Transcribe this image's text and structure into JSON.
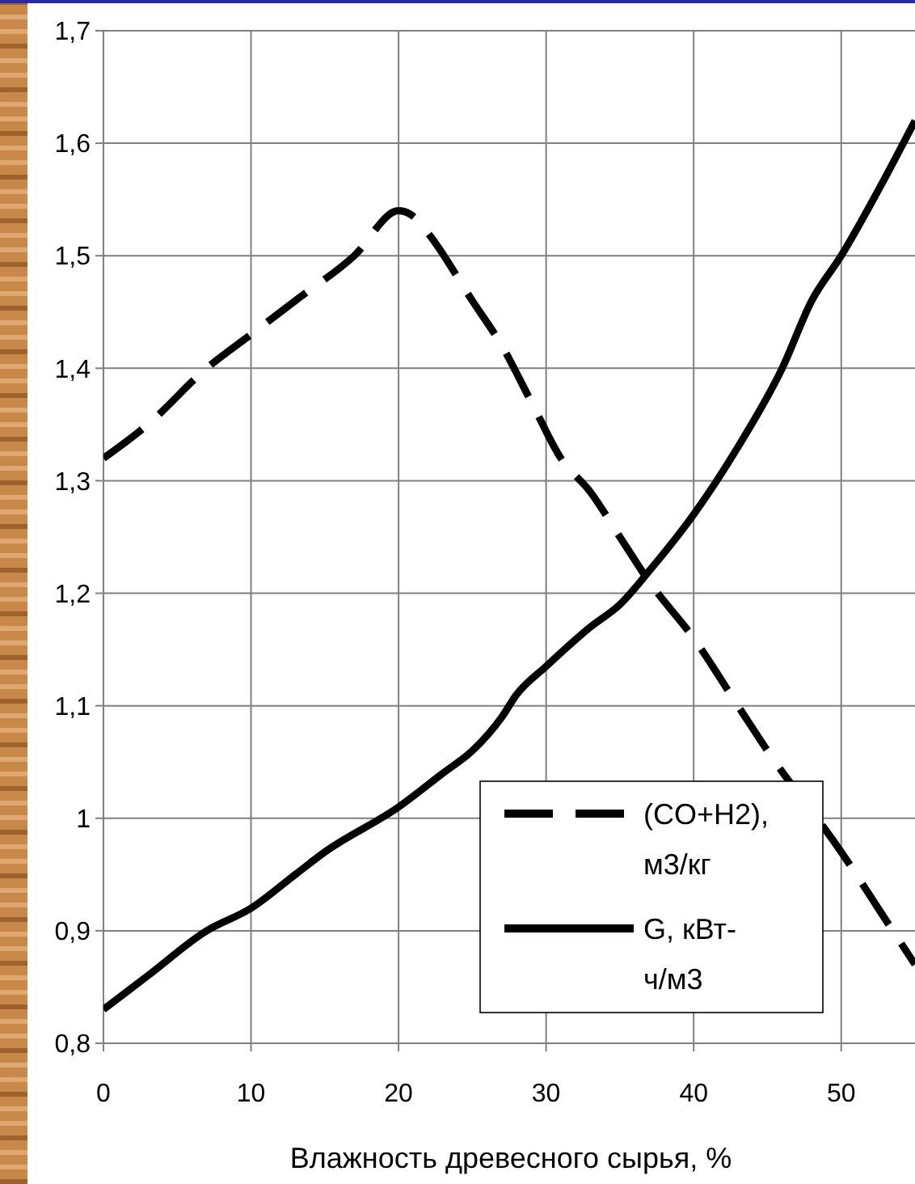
{
  "chart_data": {
    "type": "line",
    "xlabel": "Влажность древесного сырья, %",
    "xlim": [
      0,
      55
    ],
    "xticks": [
      0,
      10,
      20,
      30,
      40,
      50
    ],
    "ylim": [
      0.8,
      1.7
    ],
    "yticks": [
      {
        "value": 0.8,
        "label": "0,8"
      },
      {
        "value": 0.9,
        "label": "0,9"
      },
      1,
      {
        "value": 1.1,
        "label": "1,1"
      },
      {
        "value": 1.2,
        "label": "1,2"
      },
      {
        "value": 1.3,
        "label": "1,3"
      },
      {
        "value": 1.4,
        "label": "1,4"
      },
      {
        "value": 1.5,
        "label": "1,5"
      },
      {
        "value": 1.6,
        "label": "1,6"
      },
      {
        "value": 1.7,
        "label": "1,7"
      }
    ],
    "grid": true,
    "legend": "bottom right",
    "series": [
      {
        "name": "(CO+H2), м3/кг",
        "color": "#000000",
        "line_style": "dashed",
        "x": [
          0,
          3,
          7,
          10,
          13,
          17,
          20,
          21,
          22,
          25,
          27,
          29,
          31,
          33,
          35,
          37,
          40,
          43,
          45,
          50,
          53,
          55
        ],
        "values": [
          1.32,
          1.35,
          1.4,
          1.43,
          1.46,
          1.5,
          1.54,
          1.535,
          1.52,
          1.46,
          1.42,
          1.37,
          1.32,
          1.29,
          1.25,
          1.21,
          1.16,
          1.1,
          1.06,
          0.97,
          0.91,
          0.87
        ]
      },
      {
        "name": "G, кВт-ч/м3",
        "color": "#000000",
        "line_style": "solid",
        "x": [
          0,
          3,
          7,
          10,
          13,
          15,
          20,
          23,
          25,
          27,
          28,
          30,
          33,
          35,
          37,
          40,
          43,
          46,
          48,
          50,
          53,
          55
        ],
        "values": [
          0.83,
          0.86,
          0.9,
          0.92,
          0.95,
          0.97,
          1.01,
          1.04,
          1.06,
          1.09,
          1.11,
          1.135,
          1.17,
          1.19,
          1.22,
          1.27,
          1.33,
          1.4,
          1.46,
          1.5,
          1.57,
          1.62
        ]
      }
    ]
  }
}
